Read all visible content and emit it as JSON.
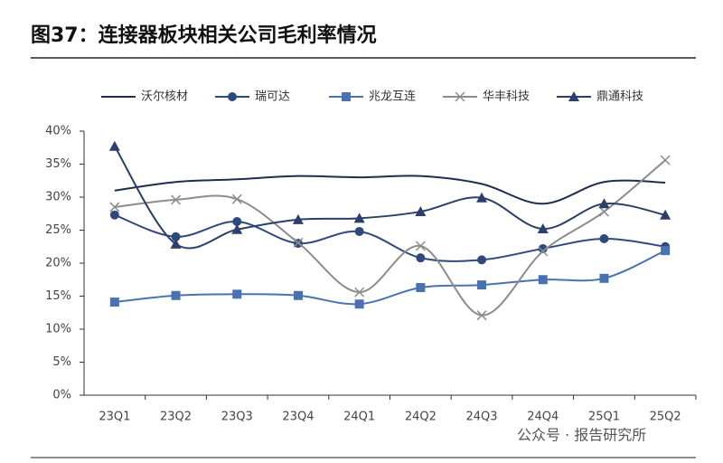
{
  "chart_data": {
    "type": "line",
    "title": "图37：连接器板块相关公司毛利率情况",
    "categories": [
      "23Q1",
      "23Q2",
      "23Q3",
      "23Q4",
      "24Q1",
      "24Q2",
      "24Q3",
      "24Q4",
      "25Q1",
      "25Q2"
    ],
    "series": [
      {
        "name": "沃尔核材",
        "color": "#1f2d4f",
        "marker": "none",
        "values": [
          31.0,
          32.3,
          32.7,
          33.2,
          33.0,
          33.2,
          32.0,
          29.0,
          32.3,
          32.2
        ]
      },
      {
        "name": "瑞可达",
        "color": "#2e4a7d",
        "marker": "circle",
        "values": [
          27.3,
          24.0,
          26.3,
          23.0,
          24.8,
          20.8,
          20.5,
          22.2,
          23.7,
          22.5
        ]
      },
      {
        "name": "兆龙互连",
        "color": "#4a72b0",
        "marker": "square",
        "values": [
          14.1,
          15.1,
          15.3,
          15.1,
          13.8,
          16.3,
          16.7,
          17.5,
          17.7,
          21.9
        ]
      },
      {
        "name": "华丰科技",
        "color": "#8c8c8c",
        "marker": "x",
        "values": [
          28.5,
          29.6,
          29.7,
          23.1,
          15.6,
          22.6,
          12.1,
          21.8,
          27.8,
          35.6
        ]
      },
      {
        "name": "鼎通科技",
        "color": "#2b3f6b",
        "marker": "triangle",
        "values": [
          37.7,
          22.9,
          25.1,
          26.6,
          26.8,
          27.8,
          29.9,
          25.2,
          29.0,
          27.3
        ]
      }
    ],
    "ylim": [
      0,
      40
    ],
    "yticks": [
      {
        "value": 0,
        "label": "0%"
      },
      {
        "value": 5,
        "label": "5%"
      },
      {
        "value": 10,
        "label": "10%"
      },
      {
        "value": 15,
        "label": "15%"
      },
      {
        "value": 20,
        "label": "20%"
      },
      {
        "value": 25,
        "label": "25%"
      },
      {
        "value": 30,
        "label": "30%"
      },
      {
        "value": 35,
        "label": "35%"
      },
      {
        "value": 40,
        "label": "40%"
      }
    ],
    "grid": false,
    "legend": "top",
    "annotations": [
      "公众号 · 报告研究所"
    ]
  }
}
